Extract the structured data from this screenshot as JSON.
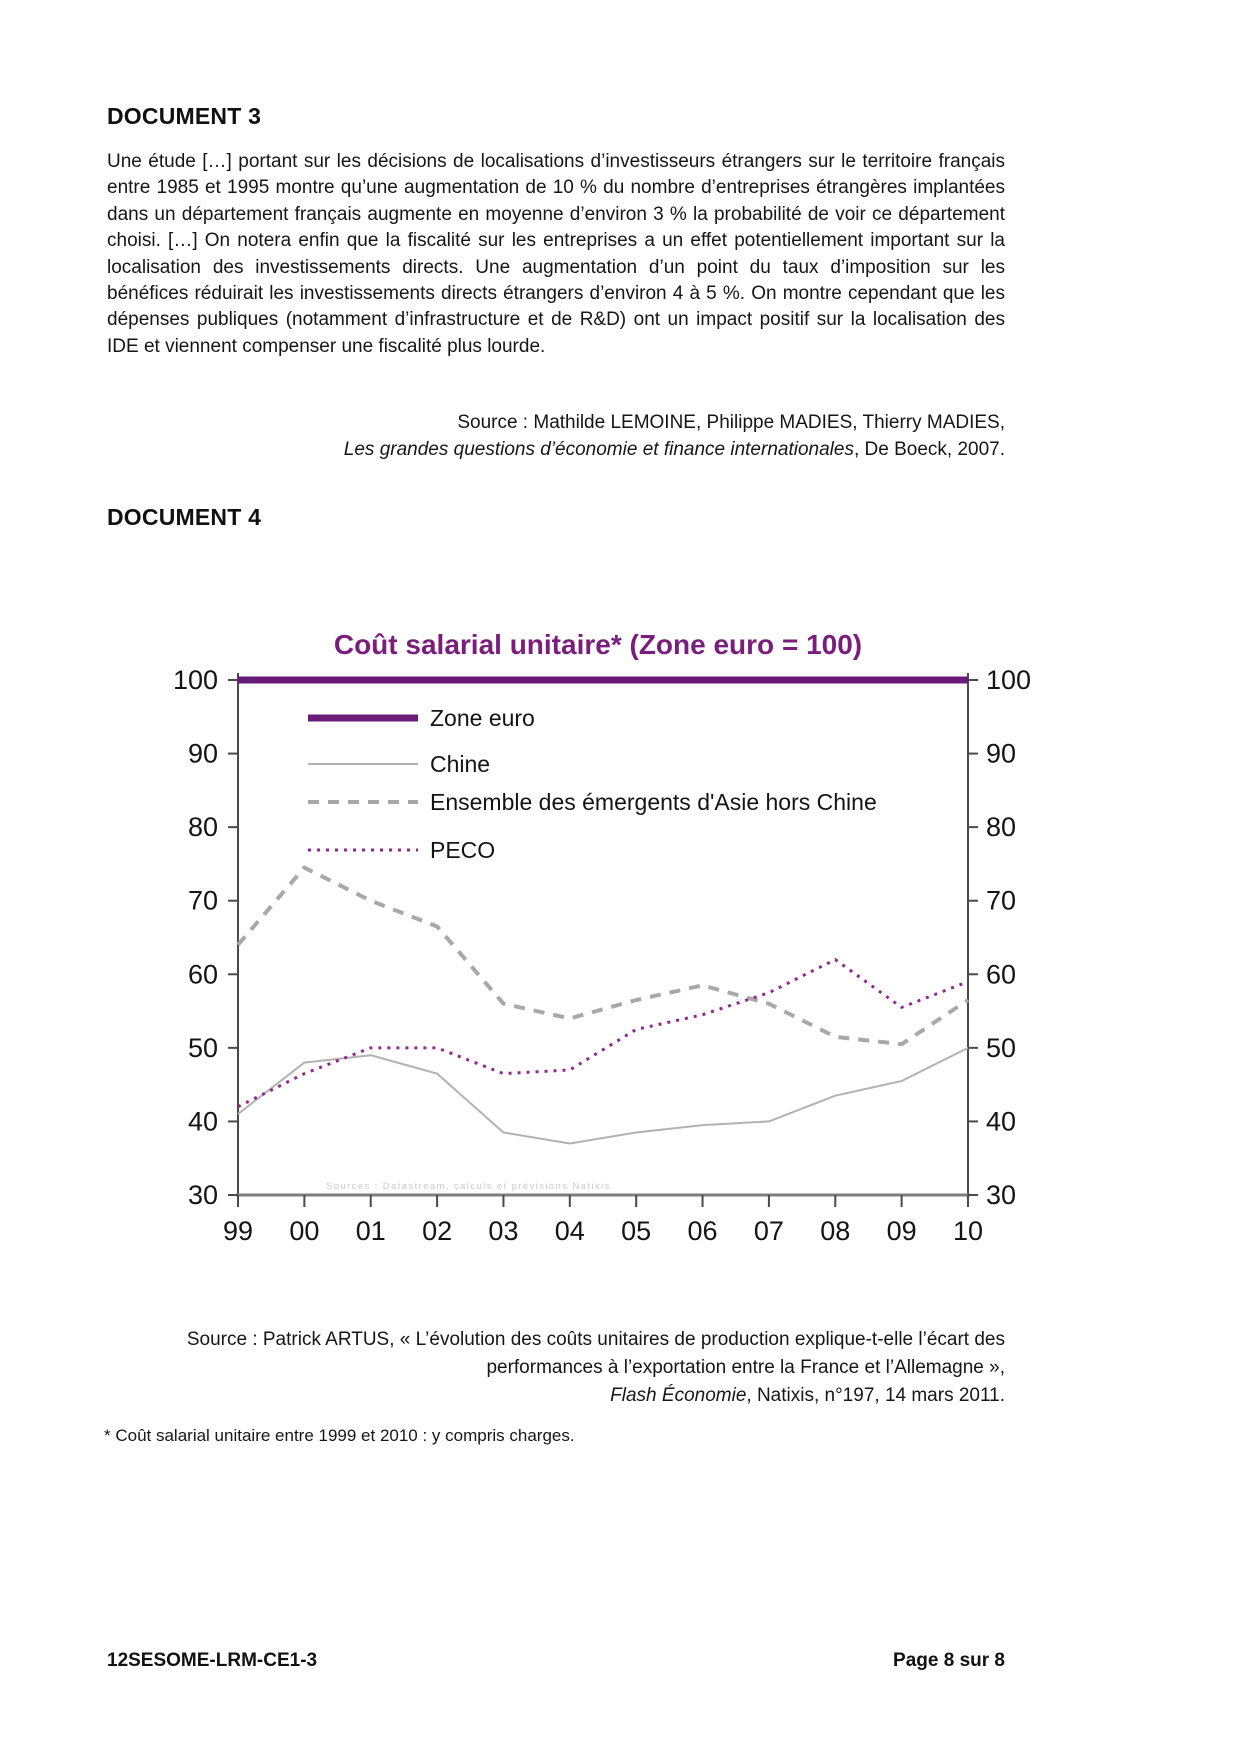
{
  "document3": {
    "heading": "DOCUMENT 3",
    "paragraph": "Une étude […] portant sur les décisions de localisations d’investisseurs étrangers sur le territoire français entre 1985 et 1995 montre qu’une augmentation de 10 % du nombre d’entreprises étrangères implantées dans un département français augmente en moyenne d’environ 3 % la probabilité de voir ce département choisi. […] On notera enfin que la fiscalité sur les entreprises a un effet potentiellement important sur la localisation des investissements directs. Une augmentation d’un point du taux d’imposition sur les bénéfices réduirait les investissements directs étrangers d’environ 4 à 5 %. On montre cependant que les dépenses publiques (notamment d’infrastructure et de R&D) ont un impact positif sur la localisation des IDE et viennent compenser une fiscalité plus lourde.",
    "source_prefix": "Source : Mathilde LEMOINE, Philippe MADIES, Thierry MADIES,",
    "source_title": "Les grandes questions d’économie et finance internationales",
    "source_suffix": ", De Boeck, 2007."
  },
  "document4": {
    "heading": "DOCUMENT 4",
    "source_line1": "Source : Patrick ARTUS, « L’évolution des coûts unitaires de production explique-t-elle l’écart des",
    "source_line2": "performances à l’exportation entre la France et l’Allemagne »,",
    "source_title": "Flash Économie",
    "source_suffix": ", Natixis, n°197, 14 mars 2011.",
    "footnote": "* Coût salarial unitaire entre 1999 et 2010 : y compris charges."
  },
  "footer": {
    "left": "12SESOME-LRM-CE1-3",
    "right": "Page 8 sur 8"
  },
  "chart_data": {
    "type": "line",
    "title": "Coût salarial unitaire* (Zone euro = 100)",
    "title_color": "#7a1e7e",
    "axis_color": "#4a4a4a",
    "categories": [
      "99",
      "00",
      "01",
      "02",
      "03",
      "04",
      "05",
      "06",
      "07",
      "08",
      "09",
      "10"
    ],
    "ylim": [
      30,
      100
    ],
    "yticks": [
      30,
      40,
      50,
      60,
      70,
      80,
      90,
      100
    ],
    "grid": false,
    "legend_position": "top-left-inside",
    "faint_source_note": "Sources : Datastream, calculs et prévisions Natixis",
    "series": [
      {
        "name": "Zone euro",
        "color": "#6a1b7a",
        "style": "solid",
        "width": 7,
        "values": [
          100,
          100,
          100,
          100,
          100,
          100,
          100,
          100,
          100,
          100,
          100,
          100
        ]
      },
      {
        "name": "Chine",
        "color": "#b2b2b2",
        "style": "solid",
        "width": 2,
        "values": [
          41,
          48,
          49,
          46.5,
          38.5,
          37,
          38.5,
          39.5,
          40,
          43.5,
          45.5,
          50
        ]
      },
      {
        "name": "Ensemble des émergents d'Asie hors Chine",
        "color": "#a8a8a8",
        "style": "dashed",
        "width": 4,
        "values": [
          64,
          74.5,
          70,
          66.5,
          56,
          54,
          56.5,
          58.5,
          56,
          51.5,
          50.5,
          56.5
        ]
      },
      {
        "name": "PECO",
        "color": "#93278f",
        "style": "dotted",
        "width": 3,
        "values": [
          42,
          46.5,
          50,
          50,
          46.5,
          47,
          52.5,
          54.5,
          57.5,
          62,
          55.5,
          59
        ]
      }
    ]
  }
}
